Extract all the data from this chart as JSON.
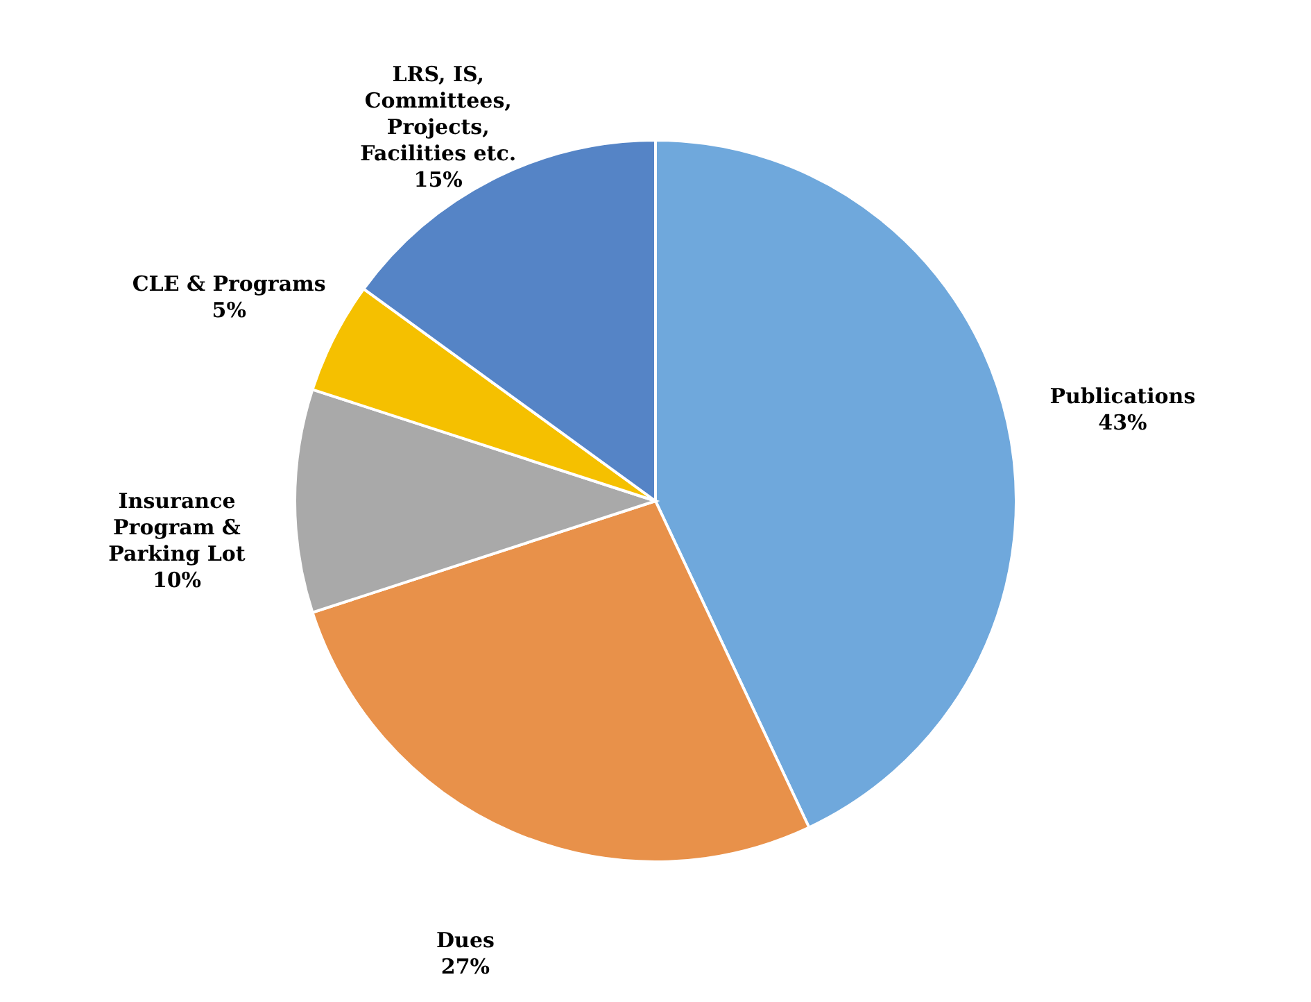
{
  "chart_data": {
    "type": "pie",
    "categories": [
      "Publications",
      "Dues",
      "Insurance Program & Parking Lot",
      "CLE & Programs",
      "LRS, IS, Committees, Projects, Facilities etc."
    ],
    "values": [
      43,
      27,
      10,
      5,
      15
    ],
    "colors": [
      "#6fa8dc",
      "#e8914a",
      "#a9a9a9",
      "#f5c000",
      "#5584c6"
    ],
    "value_labels": [
      "43%",
      "27%",
      "10%",
      "5%",
      "15%"
    ]
  }
}
